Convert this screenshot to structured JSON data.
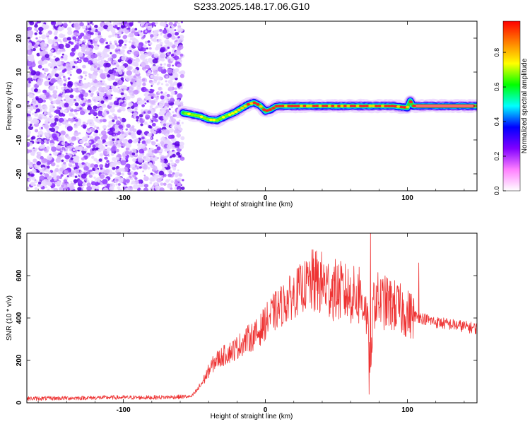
{
  "title": "S233.2025.148.17.06.G10",
  "chart_data": [
    {
      "type": "heatmap",
      "title": "S233.2025.148.17.06.G10",
      "xlabel": "Height of straight line (km)",
      "ylabel": "Frequency (Hz)",
      "xlim": [
        -168,
        149
      ],
      "ylim": [
        -25,
        25
      ],
      "x_ticks": [
        -100,
        0,
        100
      ],
      "y_ticks": [
        -20,
        -10,
        0,
        10,
        20
      ],
      "colorbar": {
        "label": "Normalized spectral amplitude",
        "range": [
          0.0,
          0.98
        ],
        "ticks": [
          0.0,
          0.2,
          0.4,
          0.6,
          0.8
        ],
        "colors": [
          "#ffffff",
          "#ff80ff",
          "#8000ff",
          "#0000ff",
          "#00ffff",
          "#00ff00",
          "#ffff00",
          "#ff8000",
          "#ff0000"
        ]
      },
      "noise_region_x": [
        -168,
        -58
      ],
      "signal_ridge": {
        "x": [
          -58,
          -52,
          -46,
          -40,
          -34,
          -28,
          -22,
          -16,
          -12,
          -8,
          -4,
          0,
          4,
          8,
          20,
          40,
          60,
          80,
          90,
          100,
          102,
          104,
          110,
          130,
          149
        ],
        "y": [
          -2,
          -2.5,
          -3,
          -4,
          -4.2,
          -3,
          -2,
          -0.5,
          0.5,
          1,
          0.2,
          -1.5,
          -1,
          0,
          0,
          0,
          0,
          0,
          0,
          -0.5,
          1.5,
          0,
          0,
          0,
          0
        ]
      }
    },
    {
      "type": "line",
      "xlabel": "Height of straight line (km)",
      "ylabel": "SNR (10 * v/v)",
      "xlim": [
        -168,
        149
      ],
      "ylim": [
        0,
        800
      ],
      "x_ticks": [
        -100,
        0,
        100
      ],
      "y_ticks": [
        0,
        200,
        400,
        600,
        800
      ],
      "color": "#ee3333",
      "series": [
        {
          "x": [
            -168,
            -140,
            -110,
            -80,
            -60,
            -52,
            -48,
            -44,
            -40,
            -35,
            -30,
            -25,
            -20,
            -15,
            -10,
            -5,
            0,
            5,
            10,
            15,
            20,
            25,
            30,
            35,
            40,
            45,
            50,
            55,
            60,
            65,
            70,
            73,
            74,
            75,
            76,
            78,
            80,
            85,
            90,
            95,
            100,
            105,
            110,
            115,
            120,
            130,
            140,
            149
          ],
          "y": [
            20,
            22,
            25,
            25,
            28,
            30,
            60,
            100,
            150,
            200,
            220,
            240,
            260,
            290,
            310,
            330,
            380,
            420,
            450,
            480,
            510,
            540,
            560,
            570,
            560,
            540,
            530,
            520,
            510,
            500,
            470,
            300,
            80,
            300,
            470,
            490,
            480,
            470,
            460,
            440,
            420,
            410,
            400,
            390,
            380,
            370,
            360,
            350
          ]
        }
      ],
      "spikes": [
        {
          "x": 74,
          "y": 800
        },
        {
          "x": 73,
          "y": 40
        },
        {
          "x": 108,
          "y": 660
        },
        {
          "x": 66,
          "y": 640
        },
        {
          "x": 34,
          "y": 680
        }
      ]
    }
  ]
}
